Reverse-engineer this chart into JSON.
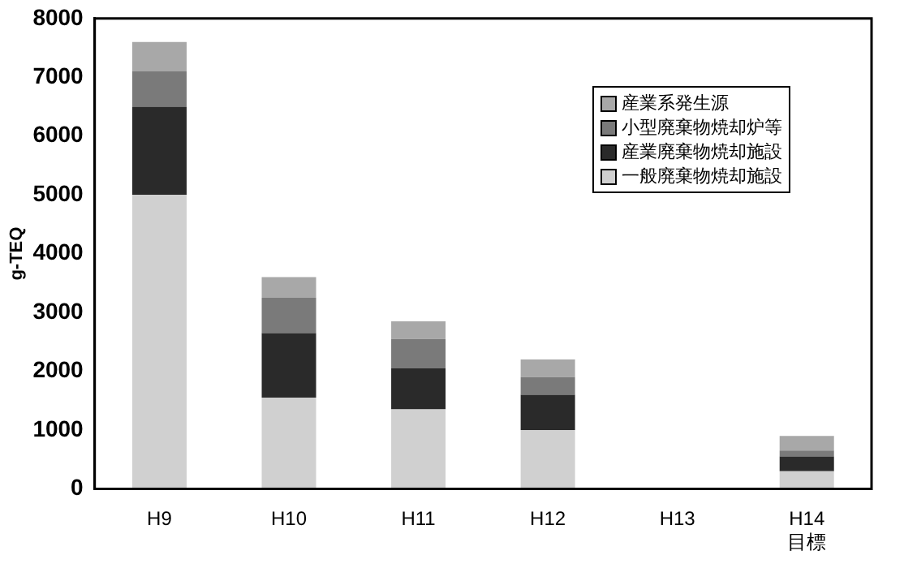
{
  "chart_data": {
    "type": "bar",
    "stacked": true,
    "ylabel": "g-TEQ",
    "categories": [
      "H9",
      "H10",
      "H11",
      "H12",
      "H13",
      "H14\n目標"
    ],
    "series": [
      {
        "name": "一般廃棄物焼却施設",
        "color": "#d0d0d0",
        "values": [
          5000,
          1550,
          1350,
          1000,
          null,
          300
        ]
      },
      {
        "name": "産業廃棄物焼却施設",
        "color": "#2a2a2a",
        "values": [
          1500,
          1100,
          700,
          600,
          null,
          250
        ]
      },
      {
        "name": "小型廃棄物焼却炉等",
        "color": "#7a7a7a",
        "values": [
          600,
          600,
          500,
          300,
          null,
          100
        ]
      },
      {
        "name": "産業系発生源",
        "color": "#a8a8a8",
        "values": [
          500,
          350,
          300,
          300,
          null,
          250
        ]
      }
    ],
    "ylim": [
      0,
      8000
    ],
    "yticks": [
      0,
      1000,
      2000,
      3000,
      4000,
      5000,
      6000,
      7000,
      8000
    ],
    "grid": false,
    "legend": "top right"
  }
}
